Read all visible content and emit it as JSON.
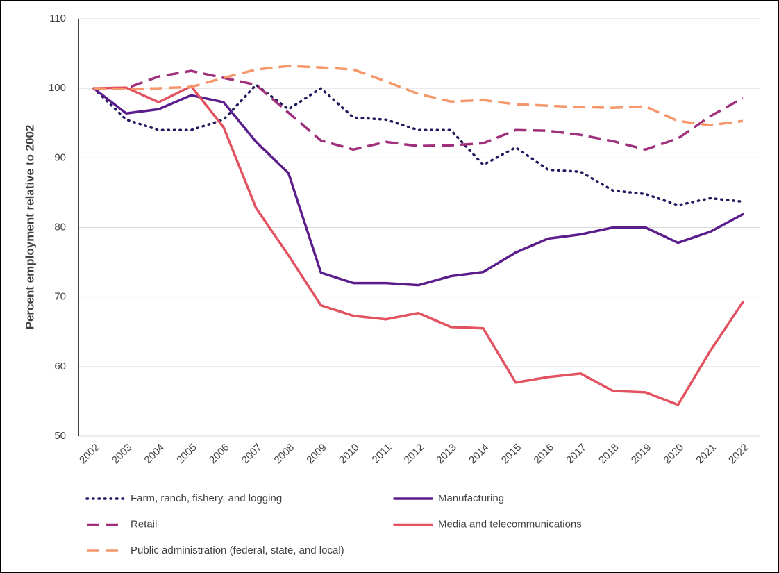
{
  "chart_data": {
    "type": "line",
    "y_label": "Percent employment relative to 2002",
    "categories": [
      "2002",
      "2003",
      "2004",
      "2005",
      "2006",
      "2007",
      "2008",
      "2009",
      "2010",
      "2011",
      "2012",
      "2013",
      "2014",
      "2015",
      "2016",
      "2017",
      "2018",
      "2019",
      "2020",
      "2021",
      "2022"
    ],
    "series": [
      {
        "name": "Farm, ranch, fishery, and logging",
        "color": "#221a5e",
        "dash": "dotted",
        "values": [
          100,
          95.5,
          94,
          94,
          95.5,
          100.5,
          97,
          100,
          95.8,
          95.5,
          94,
          94,
          89,
          91.5,
          88.3,
          88,
          85.3,
          84.8,
          83.2,
          84.2,
          83.7
        ]
      },
      {
        "name": "Manufacturing",
        "color": "#5b1d8c",
        "dash": "solid",
        "values": [
          100,
          96.4,
          97,
          99,
          98,
          92.3,
          87.8,
          73.5,
          72,
          72,
          71.7,
          73,
          73.6,
          76.4,
          78.4,
          79,
          80,
          80,
          77.8,
          79.4,
          81.9
        ]
      },
      {
        "name": "Retail",
        "color": "#a1307c",
        "dash": "dashed",
        "values": [
          100,
          100,
          101.7,
          102.5,
          101.5,
          100.5,
          96.5,
          92.5,
          91.2,
          92.3,
          91.7,
          91.8,
          92.1,
          94,
          93.9,
          93.3,
          92.4,
          91.2,
          92.8,
          96,
          98.6
        ]
      },
      {
        "name": "Media and telecommunications",
        "color": "#e2525f",
        "dash": "solid",
        "values": [
          100,
          100.1,
          98,
          100.3,
          94.4,
          82.8,
          76,
          68.8,
          67.3,
          66.8,
          67.7,
          65.7,
          65.5,
          57.7,
          58.5,
          59,
          56.5,
          56.3,
          54.5,
          62.3,
          69.3
        ]
      },
      {
        "name": "Public administration (federal, state, and local)",
        "color": "#f5966b",
        "dash": "dashed",
        "values": [
          100,
          99.9,
          100,
          100.2,
          101.5,
          102.7,
          103.2,
          103,
          102.7,
          101,
          99.2,
          98.1,
          98.3,
          97.7,
          97.5,
          97.3,
          97.2,
          97.4,
          95.3,
          94.7,
          95.3
        ]
      }
    ],
    "ylim": [
      50,
      110
    ],
    "yticks": [
      50,
      60,
      70,
      80,
      90,
      100,
      110
    ],
    "grid": true,
    "legend": "bottom"
  }
}
